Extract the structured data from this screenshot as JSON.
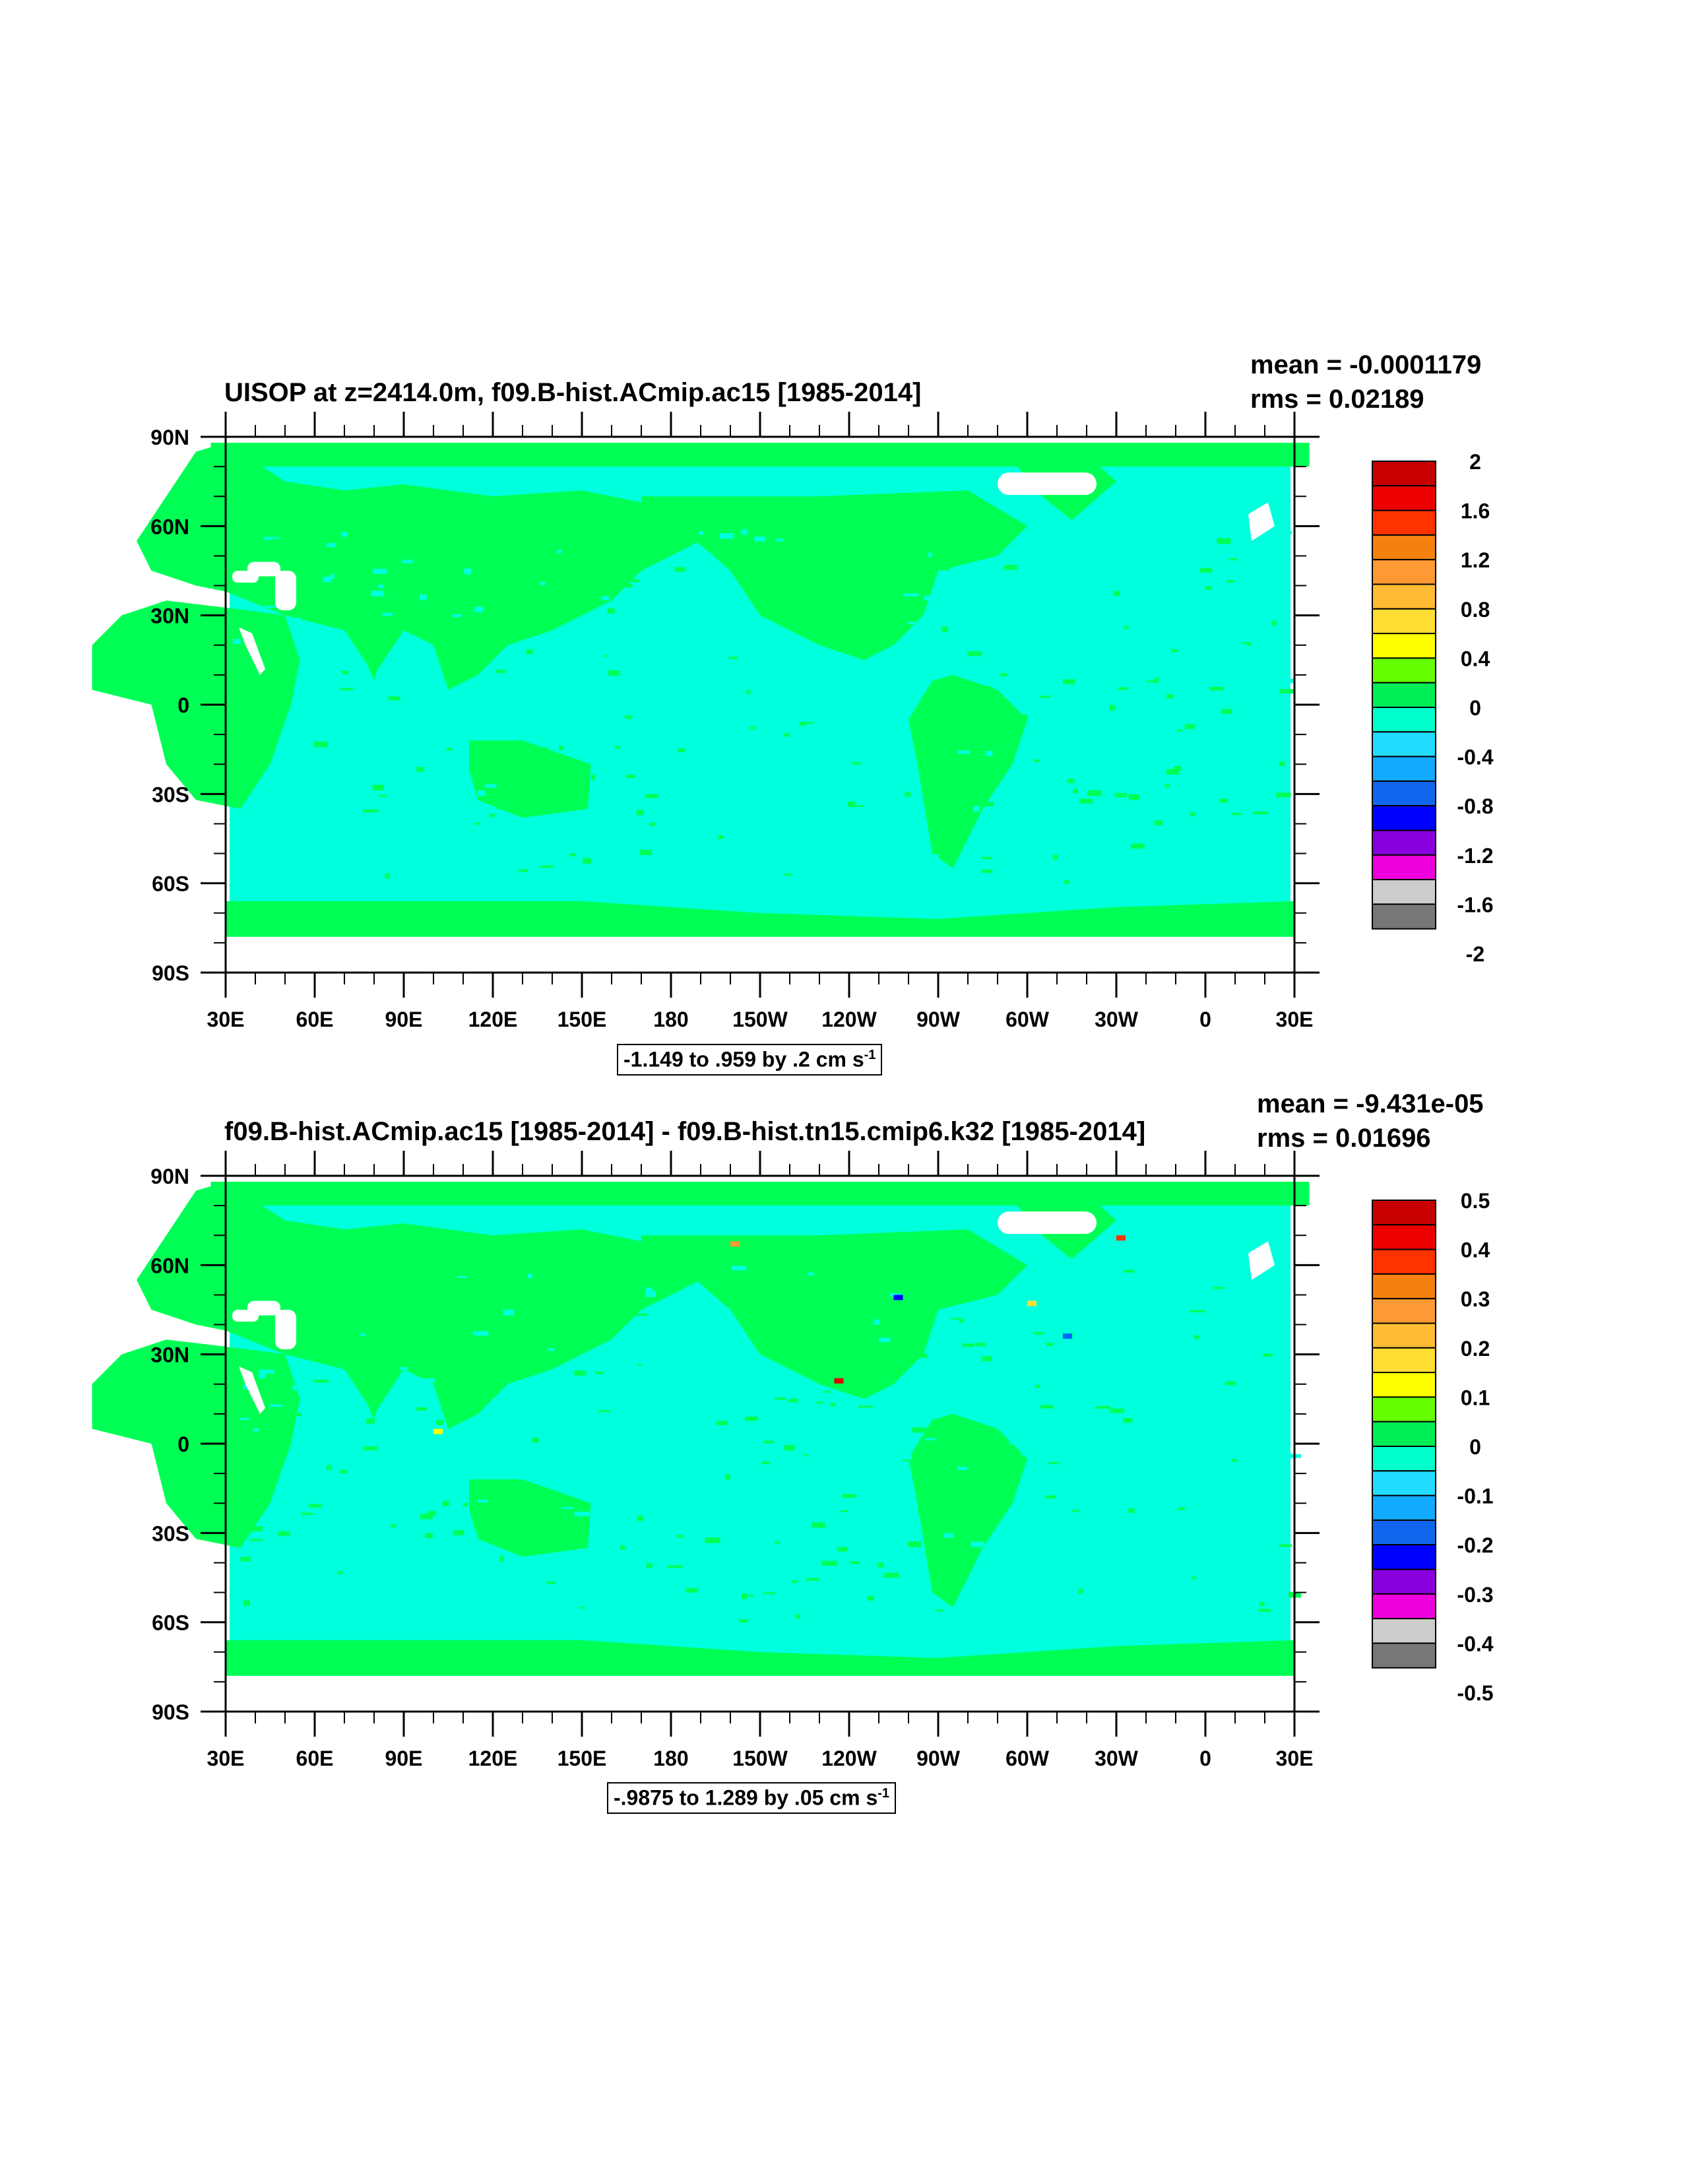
{
  "panels": [
    {
      "title": "UISOP at z=2414.0m, f09.B-hist.ACmip.ac15 [1985-2014]",
      "mean": "mean = -0.0001179",
      "rms": "rms = 0.02189",
      "note_main": "-1.149 to .959 by .2 cm s",
      "note_sup": "-1",
      "colorbar_labels": [
        "2",
        "1.6",
        "1.2",
        "0.8",
        "0.4",
        "0",
        "-0.4",
        "-0.8",
        "-1.2",
        "-1.6",
        "-2"
      ]
    },
    {
      "title": "f09.B-hist.ACmip.ac15 [1985-2014] - f09.B-hist.tn15.cmip6.k32 [1985-2014]",
      "mean": "mean = -9.431e-05",
      "rms": "rms = 0.01696",
      "note_main": "-.9875 to 1.289 by .05 cm s",
      "note_sup": "-1",
      "colorbar_labels": [
        "0.5",
        "0.4",
        "0.3",
        "0.2",
        "0.1",
        "0",
        "-0.1",
        "-0.2",
        "-0.3",
        "-0.4",
        "-0.5"
      ]
    }
  ],
  "lat_labels": [
    "90N",
    "60N",
    "30N",
    "0",
    "30S",
    "60S",
    "90S"
  ],
  "lon_labels": [
    "30E",
    "60E",
    "90E",
    "120E",
    "150E",
    "180",
    "150W",
    "120W",
    "90W",
    "60W",
    "30W",
    "0",
    "30E"
  ],
  "colorbar_colors": [
    "#c80000",
    "#ee0000",
    "#ff3300",
    "#f5800e",
    "#ff9933",
    "#ffbb33",
    "#ffdd33",
    "#ffff00",
    "#66ff00",
    "#00ee55",
    "#00ffcc",
    "#22ddff",
    "#11aaff",
    "#1166ee",
    "#0000ff",
    "#8800dd",
    "#ee00dd",
    "#cccccc",
    "#777777"
  ],
  "map_colors": {
    "land": "#00ff55",
    "ocean": "#00ffdd",
    "missing": "#ffffff"
  }
}
